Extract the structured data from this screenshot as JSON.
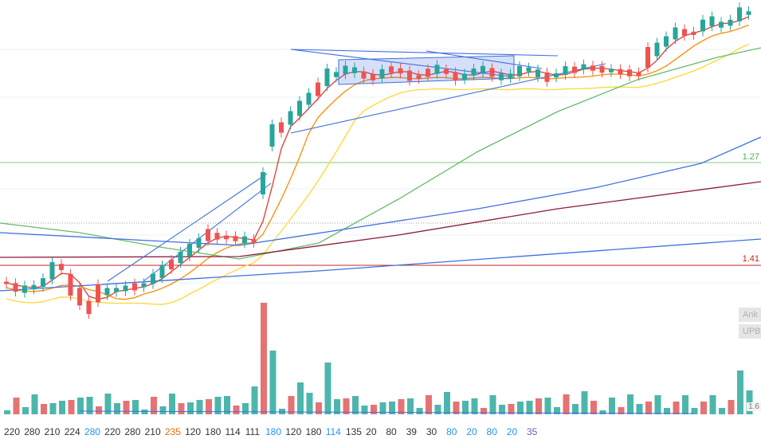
{
  "chart_data": {
    "type": "candlestick",
    "title": "",
    "price_levels": [
      {
        "label": "1.27",
        "color": "#4caf50"
      },
      {
        "label": "1.41",
        "color": "#c62828"
      }
    ],
    "side_badges": [
      "Ank",
      "UPB"
    ],
    "small_tag": "1.6",
    "volume_scale_labels": [
      {
        "text": "220",
        "color": "#333333"
      },
      {
        "text": "280",
        "color": "#333333"
      },
      {
        "text": "210",
        "color": "#333333"
      },
      {
        "text": "224",
        "color": "#333333"
      },
      {
        "text": "280",
        "color": "#2196f3"
      },
      {
        "text": "220",
        "color": "#333333"
      },
      {
        "text": "280",
        "color": "#333333"
      },
      {
        "text": "210",
        "color": "#333333"
      },
      {
        "text": "235",
        "color": "#ef6c00"
      },
      {
        "text": "120",
        "color": "#333333"
      },
      {
        "text": "180",
        "color": "#333333"
      },
      {
        "text": "114",
        "color": "#333333"
      },
      {
        "text": "111",
        "color": "#333333"
      },
      {
        "text": "180",
        "color": "#2196f3"
      },
      {
        "text": "120",
        "color": "#333333"
      },
      {
        "text": "180",
        "color": "#333333"
      },
      {
        "text": "114",
        "color": "#2196f3"
      },
      {
        "text": "135",
        "color": "#333333"
      },
      {
        "text": "20",
        "color": "#333333"
      },
      {
        "text": "80",
        "color": "#333333"
      },
      {
        "text": "39",
        "color": "#333333"
      },
      {
        "text": "30",
        "color": "#333333"
      },
      {
        "text": "80",
        "color": "#2196f3"
      },
      {
        "text": "20",
        "color": "#2196f3"
      },
      {
        "text": "80",
        "color": "#2196f3"
      },
      {
        "text": "20",
        "color": "#2196f3"
      },
      {
        "text": "35",
        "color": "#7e57c2"
      }
    ],
    "colors": {
      "up": "#26a69a",
      "down": "#ef5350",
      "ma_fast": "#e53935",
      "ma_mid": "#fb8c00",
      "ma_slow": "#fdd835",
      "ma_long": "#66bb6a",
      "ma_blue": "#3f6fe0",
      "ma_maroon": "#8e1a3a"
    }
  }
}
